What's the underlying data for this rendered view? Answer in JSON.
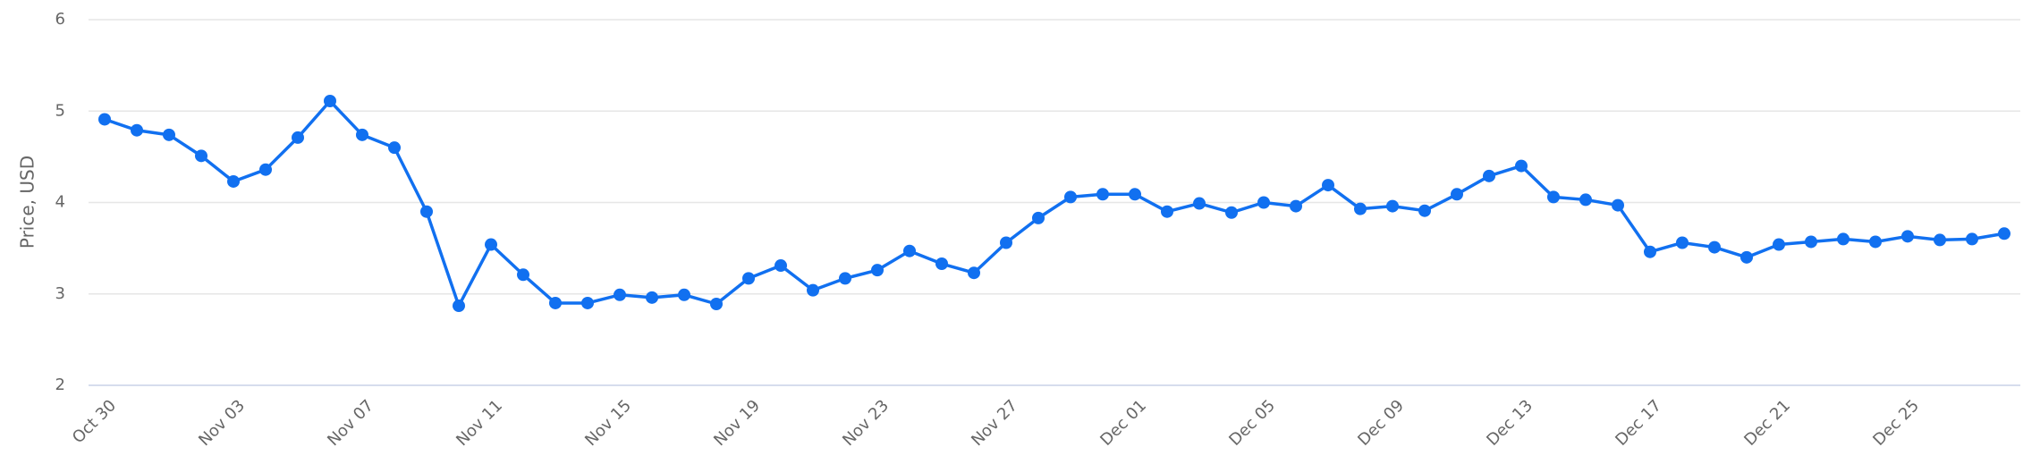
{
  "chart_data": {
    "type": "line",
    "y_axis_label": "Price, USD",
    "categories": [
      "Oct 30",
      null,
      null,
      null,
      "Nov 03",
      null,
      null,
      null,
      "Nov 07",
      null,
      null,
      null,
      "Nov 11",
      null,
      null,
      null,
      "Nov 15",
      null,
      null,
      null,
      "Nov 19",
      null,
      null,
      null,
      "Nov 23",
      null,
      null,
      null,
      "Nov 27",
      null,
      null,
      null,
      "Dec 01",
      null,
      null,
      null,
      "Dec 05",
      null,
      null,
      null,
      "Dec 09",
      null,
      null,
      null,
      "Dec 13",
      null,
      null,
      null,
      "Dec 17",
      null,
      null,
      null,
      "Dec 21",
      null,
      null,
      null,
      "Dec 25",
      null,
      null,
      null
    ],
    "values": [
      4.91,
      4.79,
      4.74,
      4.51,
      4.23,
      4.36,
      4.71,
      5.11,
      4.74,
      4.6,
      3.9,
      2.87,
      3.54,
      3.21,
      2.9,
      2.9,
      2.99,
      2.96,
      2.99,
      2.89,
      3.17,
      3.31,
      3.04,
      3.17,
      3.26,
      3.47,
      3.33,
      3.23,
      3.56,
      3.83,
      4.06,
      4.09,
      4.09,
      3.9,
      3.99,
      3.89,
      4.0,
      3.96,
      4.19,
      3.93,
      3.96,
      3.91,
      4.09,
      4.29,
      4.4,
      4.06,
      4.03,
      3.97,
      3.46,
      3.56,
      3.51,
      3.4,
      3.54,
      3.57,
      3.6,
      3.57,
      3.63,
      3.59,
      3.6,
      3.66
    ],
    "color": "#1170f0",
    "ylim": [
      2,
      6
    ],
    "yticks": [
      2,
      3,
      4,
      5,
      6
    ],
    "grid": true
  }
}
